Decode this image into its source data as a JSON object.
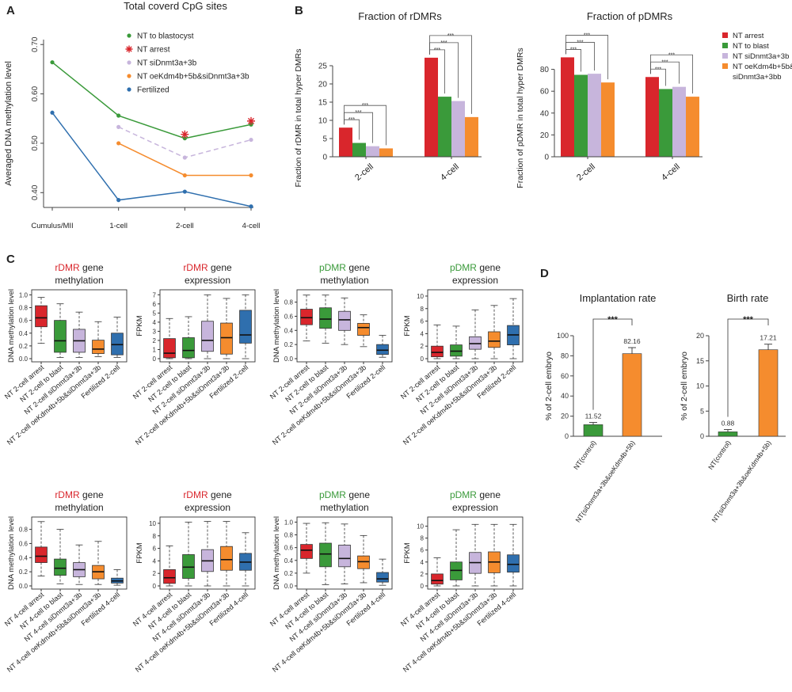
{
  "panels": {
    "A": "A",
    "B": "B",
    "C": "C",
    "D": "D"
  },
  "colors": {
    "red": "#d9262c",
    "green": "#3a9a3a",
    "lilac": "#c7b5dc",
    "orange": "#f58c2e",
    "blue": "#2f6fae",
    "asterisk": "#d9262c",
    "ink": "#222222"
  },
  "chart_data": [
    {
      "id": "A",
      "type": "line",
      "title": "Total coverd CpG sites",
      "ylabel": "Averaged DNA methylation level",
      "xlabel": "",
      "categories": [
        "Cumulus/MII",
        "1-cell",
        "2-cell",
        "4-cell"
      ],
      "ylim": [
        0.37,
        0.71
      ],
      "yticks": [
        "0.40",
        "0.50",
        "0.60",
        "0.70"
      ],
      "yticks_values": [
        0.4,
        0.5,
        0.6,
        0.7
      ],
      "legend": [
        "NT to blastocyst",
        "NT arrest",
        "NT siDnmt3a+3b",
        "NT oeKdm4b+5b&siDnmt3a+3b",
        "Fertilized"
      ],
      "series": [
        {
          "name": "NT to blastocyst",
          "color": "green",
          "dash": false,
          "values": [
            0.664,
            0.556,
            0.51,
            0.538
          ]
        },
        {
          "name": "NT arrest",
          "color": "asterisk",
          "marker": "star",
          "values": [
            null,
            null,
            0.518,
            0.545
          ]
        },
        {
          "name": "NT siDnmt3a+3b",
          "color": "lilac",
          "dash": true,
          "values": [
            null,
            0.533,
            0.471,
            0.507
          ]
        },
        {
          "name": "NT oeKdm4b+5b&siDnmt3a+3b",
          "color": "orange",
          "dash": false,
          "values": [
            null,
            0.5,
            0.435,
            0.435
          ]
        },
        {
          "name": "Fertilized",
          "color": "blue",
          "dash": false,
          "values": [
            0.562,
            0.385,
            0.402,
            0.372
          ]
        }
      ]
    },
    {
      "id": "B1",
      "type": "bar",
      "title": "Fraction of rDMRs",
      "ylabel": "Fraction of rDMR in total hyper DMRs",
      "categories": [
        "2-cell",
        "4-cell"
      ],
      "ylim": [
        0,
        30
      ],
      "yticks": [
        "0",
        "5",
        "10",
        "15",
        "20",
        "25"
      ],
      "yticks_values": [
        0,
        5,
        10,
        15,
        20,
        25
      ],
      "series": [
        {
          "name": "NT arrest",
          "color": "red",
          "values": [
            8.0,
            27.2
          ]
        },
        {
          "name": "NT to blast",
          "color": "green",
          "values": [
            3.8,
            16.5
          ]
        },
        {
          "name": "NT siDnmt3a+3b",
          "color": "lilac",
          "values": [
            2.9,
            15.3
          ]
        },
        {
          "name": "NT oeKdm4b+5b& siDnmt3a+3bb",
          "color": "orange",
          "values": [
            2.3,
            10.9
          ]
        }
      ],
      "sig": [
        "***",
        "***",
        "***"
      ]
    },
    {
      "id": "B2",
      "type": "bar",
      "title": "Fraction of pDMRs",
      "ylabel": "Fraction of pDMR in total hyper DMRs",
      "categories": [
        "2-cell",
        "4-cell"
      ],
      "ylim": [
        0,
        100
      ],
      "yticks": [
        "0",
        "20",
        "40",
        "60",
        "80"
      ],
      "yticks_values": [
        0,
        20,
        40,
        60,
        80
      ],
      "series": [
        {
          "name": "NT arrest",
          "color": "red",
          "values": [
            91,
            73
          ]
        },
        {
          "name": "NT to blast",
          "color": "green",
          "values": [
            75,
            62
          ]
        },
        {
          "name": "NT siDnmt3a+3b",
          "color": "lilac",
          "values": [
            76,
            64
          ]
        },
        {
          "name": "NT oeKdm4b+5b& siDnmt3a+3bb",
          "color": "orange",
          "values": [
            68,
            55
          ]
        }
      ],
      "sig": [
        "***",
        "***",
        "***"
      ],
      "legend": [
        "NT arrest",
        "NT to blast",
        "NT siDnmt3a+3b",
        "NT oeKdm4b+5b&",
        "siDnmt3a+3bb"
      ]
    },
    {
      "id": "C1",
      "type": "box",
      "title_colored": "rDMR",
      "title_color": "red",
      "title_rest": " gene",
      "title_line2": "methylation",
      "ylabel": "DNA methylation level",
      "ylim": [
        0,
        1.03
      ],
      "yticks": [
        "0.0",
        "0.2",
        "0.4",
        "0.6",
        "0.8",
        "1.0"
      ],
      "yticks_values": [
        0,
        0.2,
        0.4,
        0.6,
        0.8,
        1.0
      ],
      "categories": [
        "NT 2-cell arrest",
        "NT 2-cell to blast",
        "NT 2-cell siDnmt3a+3b",
        "NT 2-cell oeKdm4b+5b&siDnmt3a+3b",
        "Fertilized 2-cell"
      ],
      "boxes": [
        [
          0.24,
          0.5,
          0.64,
          0.83,
          0.96
        ],
        [
          0.02,
          0.1,
          0.28,
          0.6,
          0.86
        ],
        [
          0.02,
          0.1,
          0.28,
          0.46,
          0.73
        ],
        [
          0.03,
          0.08,
          0.15,
          0.29,
          0.58
        ],
        [
          0.02,
          0.06,
          0.22,
          0.4,
          0.65
        ]
      ]
    },
    {
      "id": "C2",
      "type": "box",
      "title_colored": "rDMR",
      "title_color": "red",
      "title_rest": " gene",
      "title_line2": "expression",
      "ylabel": "FPKM",
      "ylim": [
        0,
        7.2
      ],
      "yticks": [
        "0",
        "1",
        "2",
        "3",
        "4",
        "5",
        "6",
        "7"
      ],
      "yticks_values": [
        0,
        1,
        2,
        3,
        4,
        5,
        6,
        7
      ],
      "categories": [
        "NT 2-cell arrest",
        "NT 2-cell to blast",
        "NT 2-cell siDnmt3a+3b",
        "NT 2-cell oeKdm4b+5b&siDnmt3a+3b",
        "Fertilized 2-cell"
      ],
      "boxes": [
        [
          0,
          0.1,
          0.6,
          2.2,
          4.4
        ],
        [
          0,
          0.1,
          0.9,
          2.3,
          4.6
        ],
        [
          0,
          0.8,
          2.0,
          4.1,
          7.0
        ],
        [
          0,
          0.5,
          2.3,
          3.9,
          6.6
        ],
        [
          0,
          1.7,
          2.6,
          5.3,
          7.0
        ]
      ]
    },
    {
      "id": "C3",
      "type": "box",
      "title_colored": "pDMR",
      "title_color": "green",
      "title_rest": " gene",
      "title_line2": "methylation",
      "ylabel": "DNA methylation level",
      "ylim": [
        0,
        0.93
      ],
      "yticks": [
        "0.0",
        "0.2",
        "0.4",
        "0.6",
        "0.8"
      ],
      "yticks_values": [
        0,
        0.2,
        0.4,
        0.6,
        0.8
      ],
      "categories": [
        "NT 2-cell arrest",
        "NT 2-cell to blast",
        "NT 2-cell siDnmt3a+3b",
        "NT 2-cell oeKdm4b+5b&siDnmt3a+3b",
        "Fertilized 2-cell"
      ],
      "boxes": [
        [
          0.25,
          0.48,
          0.58,
          0.7,
          0.9
        ],
        [
          0.22,
          0.43,
          0.56,
          0.72,
          0.9
        ],
        [
          0.2,
          0.4,
          0.55,
          0.67,
          0.86
        ],
        [
          0.17,
          0.33,
          0.44,
          0.5,
          0.62
        ],
        [
          0.02,
          0.06,
          0.12,
          0.2,
          0.33
        ]
      ]
    },
    {
      "id": "C4",
      "type": "box",
      "title_colored": "pDMR",
      "title_color": "green",
      "title_rest": " gene",
      "title_line2": "expression",
      "ylabel": "FPKM",
      "ylim": [
        0,
        10.5
      ],
      "yticks": [
        "0",
        "2",
        "4",
        "6",
        "8",
        "10"
      ],
      "yticks_values": [
        0,
        2,
        4,
        6,
        8,
        10
      ],
      "categories": [
        "NT 2-cell arrest",
        "NT 2-cell to blast",
        "NT 2-cell siDnmt3a+3b",
        "NT 2-cell oeKdm4b+5b&siDnmt3a+3b",
        "Fertilized 2-cell"
      ],
      "boxes": [
        [
          0,
          0.3,
          1.0,
          2.0,
          5.4
        ],
        [
          0,
          0.4,
          1.2,
          2.2,
          5.2
        ],
        [
          0,
          1.5,
          2.4,
          3.5,
          7.8
        ],
        [
          0,
          1.8,
          2.8,
          4.3,
          8.5
        ],
        [
          0,
          2.2,
          3.8,
          5.3,
          9.6
        ]
      ]
    },
    {
      "id": "C5",
      "type": "box",
      "title_colored": "rDMR",
      "title_color": "red",
      "title_rest": " gene",
      "title_line2": "methylation",
      "ylabel": "DNA methylation level",
      "ylim": [
        0,
        0.93
      ],
      "yticks": [
        "0.0",
        "0.2",
        "0.4",
        "0.6",
        "0.8"
      ],
      "yticks_values": [
        0,
        0.2,
        0.4,
        0.6,
        0.8
      ],
      "categories": [
        "NT 4-cell arrest",
        "NT 4-cell to blast",
        "NT 4-cell siDnmt3a+3b",
        "NT 4-cell oeKdm4b+5b&siDnmt3a+3b",
        "Fertilized 4-cell"
      ],
      "boxes": [
        [
          0.14,
          0.33,
          0.42,
          0.55,
          0.91
        ],
        [
          0.03,
          0.15,
          0.25,
          0.38,
          0.8
        ],
        [
          0.02,
          0.13,
          0.23,
          0.33,
          0.58
        ],
        [
          0.02,
          0.1,
          0.2,
          0.29,
          0.63
        ],
        [
          0.01,
          0.04,
          0.07,
          0.11,
          0.23
        ]
      ]
    },
    {
      "id": "C6",
      "type": "box",
      "title_colored": "rDMR",
      "title_color": "red",
      "title_rest": " gene",
      "title_line2": "expression",
      "ylabel": "FPKM",
      "ylim": [
        0,
        10.5
      ],
      "yticks": [
        "0",
        "2",
        "4",
        "6",
        "8",
        "10"
      ],
      "yticks_values": [
        0,
        2,
        4,
        6,
        8,
        10
      ],
      "categories": [
        "NT 4-cell arrest",
        "NT 4-cell to blast",
        "NT 4-cell siDnmt3a+3b",
        "NT 4-cell oeKdm4b+5b&siDnmt3a+3b",
        "Fertilized 4-cell"
      ],
      "boxes": [
        [
          0,
          0.4,
          1.3,
          2.6,
          6.4
        ],
        [
          0,
          1.2,
          3.0,
          5.0,
          10.2
        ],
        [
          0,
          2.3,
          4.0,
          5.8,
          10.3
        ],
        [
          0,
          2.5,
          4.2,
          6.3,
          10.3
        ],
        [
          0,
          2.5,
          3.8,
          5.2,
          8.5
        ]
      ]
    },
    {
      "id": "C7",
      "type": "box",
      "title_colored": "pDMR",
      "title_color": "green",
      "title_rest": " gene",
      "title_line2": "methylation",
      "ylabel": "DNA methylation level",
      "ylim": [
        0,
        1.03
      ],
      "yticks": [
        "0.0",
        "0.2",
        "0.4",
        "0.6",
        "0.8",
        "1.0"
      ],
      "yticks_values": [
        0,
        0.2,
        0.4,
        0.6,
        0.8,
        1.0
      ],
      "categories": [
        "NT 4-cell arrest",
        "NT 4-cell to blast",
        "NT 4-cell siDnmt3a+3b",
        "NT 4-cell oeKdm4b+5b&siDnmt3a+3b",
        "Fertilized 4-cell"
      ],
      "boxes": [
        [
          0.2,
          0.43,
          0.56,
          0.65,
          0.98
        ],
        [
          0.02,
          0.3,
          0.5,
          0.67,
          0.99
        ],
        [
          0.03,
          0.3,
          0.43,
          0.64,
          0.97
        ],
        [
          0.05,
          0.27,
          0.38,
          0.47,
          0.79
        ],
        [
          0.01,
          0.06,
          0.11,
          0.21,
          0.42
        ]
      ]
    },
    {
      "id": "C8",
      "type": "box",
      "title_colored": "pDMR",
      "title_color": "green",
      "title_rest": " gene",
      "title_line2": "expression",
      "ylabel": "FPKM",
      "ylim": [
        0,
        11
      ],
      "yticks": [
        "0",
        "2",
        "4",
        "6",
        "8",
        "10"
      ],
      "yticks_values": [
        0,
        2,
        4,
        6,
        8,
        10
      ],
      "categories": [
        "NT 4-cell arrest",
        "NT 4-cell to blast",
        "NT 4-cell siDnmt3a+3b",
        "NT 4-cell oeKdm4b+5b&siDnmt3a+3b",
        "Fertilized 4-cell"
      ],
      "boxes": [
        [
          0,
          0.3,
          0.9,
          2.0,
          4.7
        ],
        [
          0,
          1.0,
          2.6,
          4.0,
          9.4
        ],
        [
          0,
          2.1,
          3.9,
          5.6,
          10.3
        ],
        [
          0,
          2.2,
          4.0,
          5.7,
          10.3
        ],
        [
          0,
          2.3,
          3.6,
          5.2,
          10.3
        ]
      ]
    },
    {
      "id": "D1",
      "type": "bar",
      "title": "Implantation rate",
      "ylabel": "% of 2-cell embryo",
      "categories": [
        "NT(control)",
        "NT(siDnmt3a+3b&oeKdm4b+5b)"
      ],
      "values": [
        11.52,
        82.16
      ],
      "errors": [
        2.2,
        6.0
      ],
      "value_labels": [
        "11.52",
        "82.16"
      ],
      "bar_colors": [
        "green",
        "orange"
      ],
      "ylim": [
        0,
        100
      ],
      "yticks": [
        "0",
        "20",
        "40",
        "60",
        "80",
        "100"
      ],
      "yticks_values": [
        0,
        20,
        40,
        60,
        80,
        100
      ],
      "sig": "***"
    },
    {
      "id": "D2",
      "type": "bar",
      "title": "Birth rate",
      "ylabel": "% of 2-cell embryo",
      "categories": [
        "NT(control)",
        "NT(siDnmt3a+3b&oeKdm4b+5b)"
      ],
      "values": [
        0.88,
        17.21
      ],
      "errors": [
        0.45,
        1.1
      ],
      "value_labels": [
        "0.88",
        "17.21"
      ],
      "bar_colors": [
        "green",
        "orange"
      ],
      "ylim": [
        0,
        20
      ],
      "yticks": [
        "0",
        "5",
        "10",
        "15",
        "20"
      ],
      "yticks_values": [
        0,
        5,
        10,
        15,
        20
      ],
      "sig": "***"
    }
  ]
}
